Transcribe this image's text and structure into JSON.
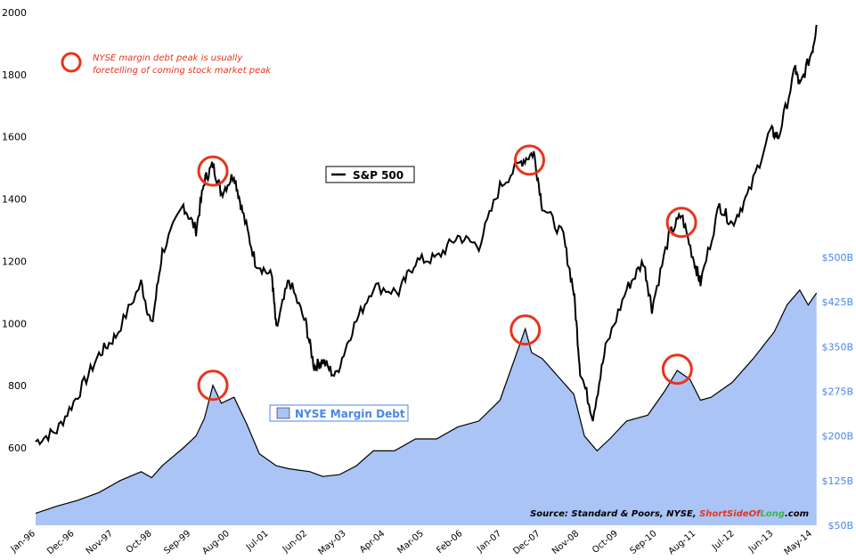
{
  "chart_data": {
    "type": "line",
    "left_axis": {
      "ticks": [
        600,
        800,
        1000,
        1200,
        1400,
        1600,
        1800,
        2000
      ],
      "range": [
        540,
        2000
      ]
    },
    "right_axis": {
      "ticks": [
        "$50B",
        "$125B",
        "$200B",
        "$275B",
        "$350B",
        "$425B",
        "$500B"
      ],
      "values": [
        50,
        125,
        200,
        275,
        350,
        425,
        500
      ],
      "range": [
        50,
        500
      ]
    },
    "x_tick_labels": [
      "Jan-96",
      "Dec-96",
      "Nov-97",
      "Oct-98",
      "Sep-99",
      "Aug-00",
      "Jul-01",
      "Jun-02",
      "May-03",
      "Apr-04",
      "Mar-05",
      "Feb-06",
      "Jan-07",
      "Dec-07",
      "Nov-08",
      "Oct-09",
      "Sep-10",
      "Aug-11",
      "Jul-12",
      "Jun-13",
      "May-14"
    ],
    "annotation": {
      "line1": "NYSE  margin  debt  peak  is  usually",
      "line2": "foretelling of coming stock market peak"
    },
    "legend_sp500": "S&P 500",
    "legend_margin": "NYSE Margin Debt",
    "source_prefix": "Source: Standard & Poors, NYSE, ",
    "source_brand_a": "Short",
    "source_brand_b": "Side",
    "source_brand_c": "Of",
    "source_brand_d": "Long",
    "source_brand_e": ".com",
    "colors": {
      "sp500": "#000000",
      "margin_fill": "#a9c4f5",
      "margin_line": "#000000",
      "circle": "#e8341c",
      "right_axis": "#4a86e8"
    },
    "series": [
      {
        "name": "S&P 500",
        "axis": "left",
        "values": [
          {
            "x": 1996.0,
            "y": 620
          },
          {
            "x": 1996.5,
            "y": 655
          },
          {
            "x": 1997.0,
            "y": 770
          },
          {
            "x": 1997.5,
            "y": 900
          },
          {
            "x": 1997.9,
            "y": 960
          },
          {
            "x": 1998.5,
            "y": 1130
          },
          {
            "x": 1998.75,
            "y": 990
          },
          {
            "x": 1999.0,
            "y": 1230
          },
          {
            "x": 1999.5,
            "y": 1380
          },
          {
            "x": 1999.8,
            "y": 1300
          },
          {
            "x": 2000.0,
            "y": 1460
          },
          {
            "x": 2000.2,
            "y": 1510
          },
          {
            "x": 2000.4,
            "y": 1420
          },
          {
            "x": 2000.7,
            "y": 1480
          },
          {
            "x": 2000.9,
            "y": 1360
          },
          {
            "x": 2001.2,
            "y": 1200
          },
          {
            "x": 2001.6,
            "y": 1150
          },
          {
            "x": 2001.7,
            "y": 980
          },
          {
            "x": 2002.0,
            "y": 1140
          },
          {
            "x": 2002.4,
            "y": 1000
          },
          {
            "x": 2002.6,
            "y": 860
          },
          {
            "x": 2002.8,
            "y": 880
          },
          {
            "x": 2003.1,
            "y": 830
          },
          {
            "x": 2003.5,
            "y": 980
          },
          {
            "x": 2004.0,
            "y": 1120
          },
          {
            "x": 2004.6,
            "y": 1100
          },
          {
            "x": 2005.0,
            "y": 1200
          },
          {
            "x": 2005.5,
            "y": 1210
          },
          {
            "x": 2006.0,
            "y": 1280
          },
          {
            "x": 2006.5,
            "y": 1250
          },
          {
            "x": 2007.0,
            "y": 1440
          },
          {
            "x": 2007.5,
            "y": 1520
          },
          {
            "x": 2007.8,
            "y": 1550
          },
          {
            "x": 2008.0,
            "y": 1380
          },
          {
            "x": 2008.5,
            "y": 1280
          },
          {
            "x": 2008.75,
            "y": 1100
          },
          {
            "x": 2008.9,
            "y": 850
          },
          {
            "x": 2009.2,
            "y": 700
          },
          {
            "x": 2009.5,
            "y": 920
          },
          {
            "x": 2010.0,
            "y": 1110
          },
          {
            "x": 2010.4,
            "y": 1200
          },
          {
            "x": 2010.6,
            "y": 1050
          },
          {
            "x": 2011.0,
            "y": 1280
          },
          {
            "x": 2011.3,
            "y": 1350
          },
          {
            "x": 2011.6,
            "y": 1200
          },
          {
            "x": 2011.75,
            "y": 1130
          },
          {
            "x": 2012.2,
            "y": 1380
          },
          {
            "x": 2012.5,
            "y": 1320
          },
          {
            "x": 2012.9,
            "y": 1420
          },
          {
            "x": 2013.4,
            "y": 1620
          },
          {
            "x": 2013.6,
            "y": 1600
          },
          {
            "x": 2014.0,
            "y": 1820
          },
          {
            "x": 2014.1,
            "y": 1760
          },
          {
            "x": 2014.4,
            "y": 1880
          },
          {
            "x": 2014.5,
            "y": 1960
          }
        ]
      },
      {
        "name": "NYSE Margin Debt",
        "axis": "right",
        "values": [
          {
            "x": 1996.0,
            "y": 70
          },
          {
            "x": 1996.5,
            "y": 82
          },
          {
            "x": 1997.0,
            "y": 92
          },
          {
            "x": 1997.5,
            "y": 105
          },
          {
            "x": 1998.0,
            "y": 125
          },
          {
            "x": 1998.5,
            "y": 140
          },
          {
            "x": 1998.75,
            "y": 130
          },
          {
            "x": 1999.0,
            "y": 150
          },
          {
            "x": 1999.5,
            "y": 180
          },
          {
            "x": 1999.8,
            "y": 200
          },
          {
            "x": 2000.0,
            "y": 230
          },
          {
            "x": 2000.2,
            "y": 285
          },
          {
            "x": 2000.4,
            "y": 255
          },
          {
            "x": 2000.7,
            "y": 265
          },
          {
            "x": 2001.0,
            "y": 220
          },
          {
            "x": 2001.3,
            "y": 170
          },
          {
            "x": 2001.7,
            "y": 150
          },
          {
            "x": 2002.0,
            "y": 145
          },
          {
            "x": 2002.5,
            "y": 140
          },
          {
            "x": 2002.8,
            "y": 132
          },
          {
            "x": 2003.2,
            "y": 135
          },
          {
            "x": 2003.6,
            "y": 150
          },
          {
            "x": 2004.0,
            "y": 175
          },
          {
            "x": 2004.5,
            "y": 175
          },
          {
            "x": 2005.0,
            "y": 195
          },
          {
            "x": 2005.5,
            "y": 195
          },
          {
            "x": 2006.0,
            "y": 215
          },
          {
            "x": 2006.5,
            "y": 225
          },
          {
            "x": 2007.0,
            "y": 260
          },
          {
            "x": 2007.4,
            "y": 340
          },
          {
            "x": 2007.6,
            "y": 380
          },
          {
            "x": 2007.75,
            "y": 340
          },
          {
            "x": 2008.0,
            "y": 330
          },
          {
            "x": 2008.5,
            "y": 290
          },
          {
            "x": 2008.75,
            "y": 270
          },
          {
            "x": 2009.0,
            "y": 200
          },
          {
            "x": 2009.3,
            "y": 175
          },
          {
            "x": 2009.6,
            "y": 195
          },
          {
            "x": 2010.0,
            "y": 225
          },
          {
            "x": 2010.5,
            "y": 235
          },
          {
            "x": 2010.9,
            "y": 275
          },
          {
            "x": 2011.2,
            "y": 310
          },
          {
            "x": 2011.5,
            "y": 295
          },
          {
            "x": 2011.75,
            "y": 260
          },
          {
            "x": 2012.0,
            "y": 265
          },
          {
            "x": 2012.5,
            "y": 290
          },
          {
            "x": 2013.0,
            "y": 330
          },
          {
            "x": 2013.5,
            "y": 375
          },
          {
            "x": 2013.8,
            "y": 420
          },
          {
            "x": 2014.1,
            "y": 445
          },
          {
            "x": 2014.3,
            "y": 420
          },
          {
            "x": 2014.5,
            "y": 440
          }
        ]
      }
    ]
  }
}
